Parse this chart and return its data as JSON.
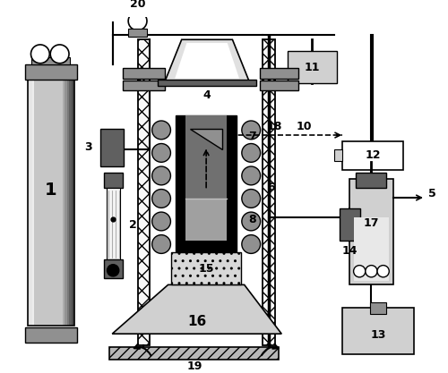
{
  "fig_width": 5.0,
  "fig_height": 4.17,
  "dpi": 100,
  "bg_color": "#ffffff",
  "gray_light": "#d0d0d0",
  "gray_mid": "#909090",
  "gray_dark": "#606060",
  "black": "#000000",
  "white": "#ffffff"
}
